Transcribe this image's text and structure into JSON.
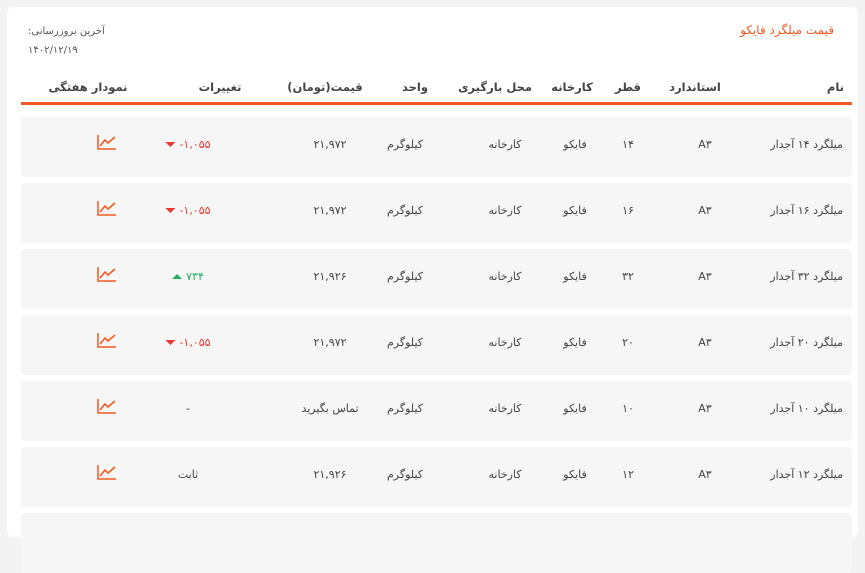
{
  "title": "قیمت میلگرد فایکو",
  "last_update_label": "آخرین بروزرسانی:",
  "last_update_date": "۱۴۰۲/۱۲/۱۹",
  "accent_color": "#f15a22",
  "columns": [
    "نام",
    "استاندارد",
    "قطر",
    "کارخانه",
    "محل بارگیری",
    "واحد",
    "قیمت(تومان)",
    "تغییرات",
    "نمودار هفتگی"
  ],
  "rows": [
    {
      "name": "میلگرد ۱۴ آجدار",
      "standard": "A۳",
      "diameter": "۱۴",
      "factory": "فایکو",
      "loading": "کارخانه",
      "unit": "کیلوگرم",
      "price": "۲۱,۹۷۲",
      "change": "-۱,۰۵۵",
      "trend": "down",
      "chart_icon": "line-chart-icon"
    },
    {
      "name": "میلگرد ۱۶ آجدار",
      "standard": "A۳",
      "diameter": "۱۶",
      "factory": "فایکو",
      "loading": "کارخانه",
      "unit": "کیلوگرم",
      "price": "۲۱,۹۷۲",
      "change": "-۱,۰۵۵",
      "trend": "down",
      "chart_icon": "line-chart-icon"
    },
    {
      "name": "میلگرد ۳۲ آجدار",
      "standard": "A۳",
      "diameter": "۳۲",
      "factory": "فایکو",
      "loading": "کارخانه",
      "unit": "کیلوگرم",
      "price": "۲۱,۹۲۶",
      "change": "۷۳۴",
      "trend": "up",
      "chart_icon": "line-chart-icon"
    },
    {
      "name": "میلگرد ۲۰ آجدار",
      "standard": "A۳",
      "diameter": "۲۰",
      "factory": "فایکو",
      "loading": "کارخانه",
      "unit": "کیلوگرم",
      "price": "۲۱,۹۷۲",
      "change": "-۱,۰۵۵",
      "trend": "down",
      "chart_icon": "line-chart-icon"
    },
    {
      "name": "میلگرد ۱۰ آجدار",
      "standard": "A۳",
      "diameter": "۱۰",
      "factory": "فایکو",
      "loading": "کارخانه",
      "unit": "کیلوگرم",
      "price": "تماس بگیرید",
      "change": "-",
      "trend": "none",
      "chart_icon": "line-chart-icon"
    },
    {
      "name": "میلگرد ۱۲ آجدار",
      "standard": "A۳",
      "diameter": "۱۲",
      "factory": "فایکو",
      "loading": "کارخانه",
      "unit": "کیلوگرم",
      "price": "۲۱,۹۲۶",
      "change": "ثابت",
      "trend": "none",
      "chart_icon": "line-chart-icon"
    }
  ]
}
